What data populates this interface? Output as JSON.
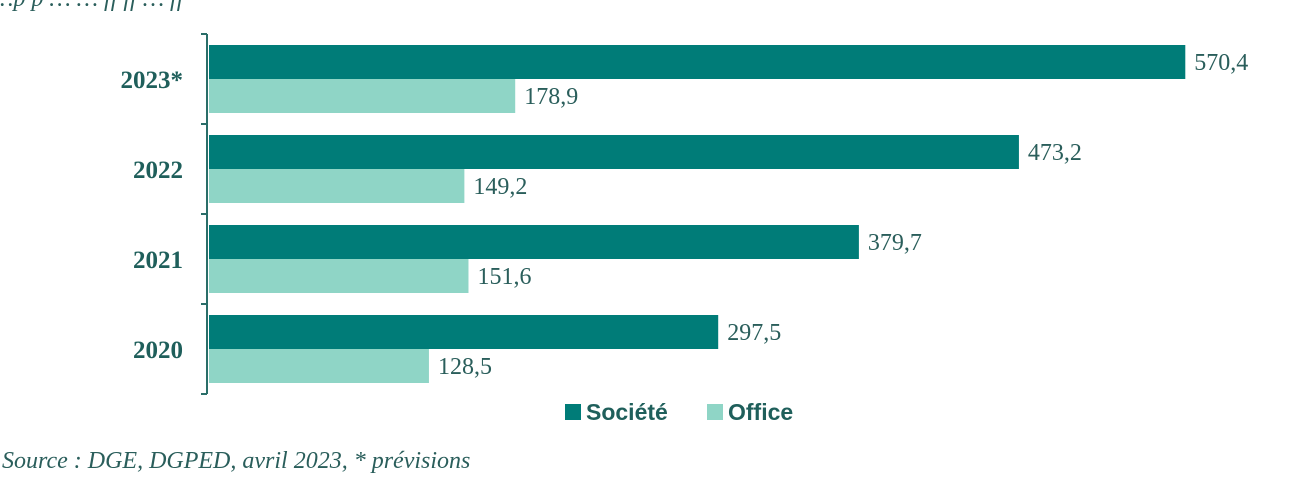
{
  "header": {
    "text": "…p p … … ff ff … ff"
  },
  "chart_data": {
    "type": "bar",
    "orientation": "horizontal",
    "categories": [
      "2023*",
      "2022",
      "2021",
      "2020"
    ],
    "series": [
      {
        "name": "Société",
        "color": "#007c78",
        "values": [
          570.4,
          473.2,
          379.7,
          297.5
        ],
        "labels": [
          "570,4",
          "473,2",
          "379,7",
          "297,5"
        ]
      },
      {
        "name": "Office",
        "color": "#8fd5c6",
        "values": [
          178.9,
          149.2,
          151.6,
          128.5
        ],
        "labels": [
          "178,9",
          "149,2",
          "151,6",
          "128,5"
        ]
      }
    ],
    "xlim": [
      0,
      600
    ],
    "grid": false,
    "legend_position": "bottom-center"
  },
  "footer": {
    "source": "Source : DGE, DGPED, avril 2023, * prévisions"
  }
}
